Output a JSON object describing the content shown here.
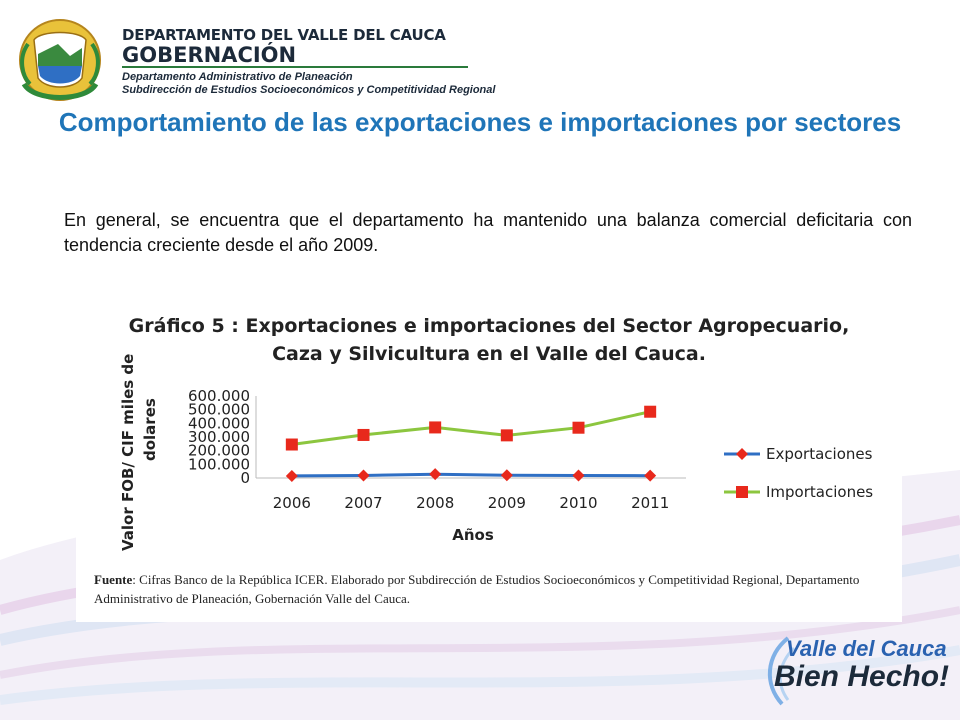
{
  "header": {
    "line1": "DEPARTAMENTO DEL VALLE DEL CAUCA",
    "line2": "GOBERNACIÓN",
    "line3": "Departamento  Administrativo de Planeación",
    "line4": "Subdirección de Estudios Socioeconómicos y Competitividad Regional"
  },
  "slide": {
    "title": "Comportamiento de las exportaciones e importaciones por sectores",
    "intro": "En general, se encuentra que el departamento ha mantenido una balanza comercial deficitaria con tendencia creciente desde el año 2009."
  },
  "source": {
    "label": "Fuente",
    "text": ": Cifras Banco de la República ICER. Elaborado por Subdirección de Estudios Socioeconómicos y Competitividad Regional, Departamento Administrativo de Planeación, Gobernación Valle del Cauca."
  },
  "slogan": {
    "line1": "Valle del Cauca",
    "line2": "Bien Hecho!"
  },
  "chart_data": {
    "type": "line",
    "title_line1": "Gráfico 5 : Exportaciones e importaciones  del Sector Agropecuario,",
    "title_line2": "Caza y Silvicultura en el Valle del Cauca.",
    "ylabel_line1": "Valor FOB/ CIF miles de",
    "ylabel_line2": "dolares",
    "xlabel": "Años",
    "x": [
      "2006",
      "2007",
      "2008",
      "2009",
      "2010",
      "2011"
    ],
    "yticks": [
      "0",
      "100.000",
      "200.000",
      "300.000",
      "400.000",
      "500.000",
      "600.000"
    ],
    "ylim": [
      0,
      600000
    ],
    "legend_position": "right",
    "grid": false,
    "series": [
      {
        "name": "Exportaciones",
        "color": "#2f6fc4",
        "marker": "diamond",
        "values": [
          15000,
          18000,
          28000,
          20000,
          18000,
          17000
        ]
      },
      {
        "name": "Importaciones",
        "color": "#8cc63f",
        "marker": "square",
        "marker_color": "#e8291c",
        "values": [
          245000,
          315000,
          370000,
          312000,
          368000,
          485000
        ]
      }
    ]
  }
}
